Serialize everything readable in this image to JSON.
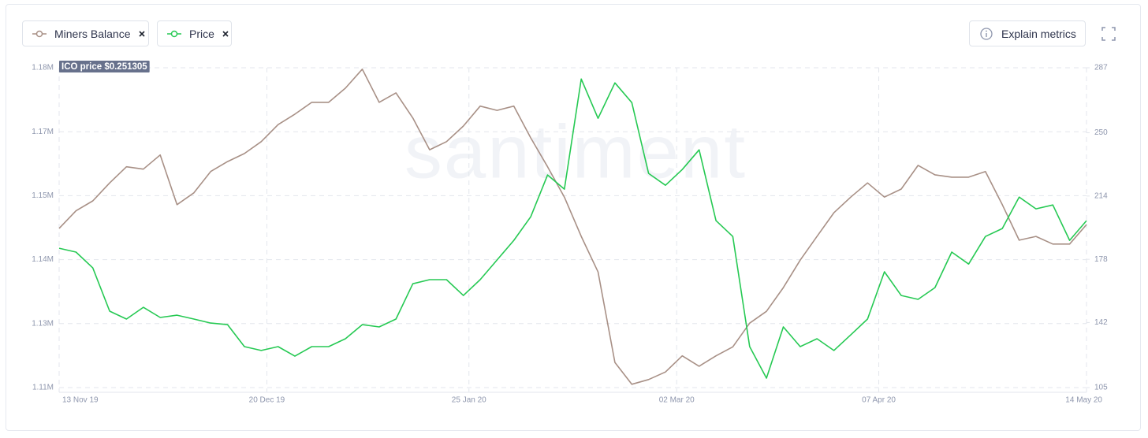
{
  "toolbar": {
    "explain_button": "Explain metrics"
  },
  "chart_data": {
    "type": "line",
    "annotation": "ICO price $0.251305",
    "watermark": "santiment",
    "grid": true,
    "x": [
      "2019-11-13",
      "2019-11-16",
      "2019-11-19",
      "2019-11-22",
      "2019-11-25",
      "2019-11-28",
      "2019-12-01",
      "2019-12-04",
      "2019-12-07",
      "2019-12-10",
      "2019-12-13",
      "2019-12-16",
      "2019-12-19",
      "2019-12-22",
      "2019-12-25",
      "2019-12-28",
      "2019-12-31",
      "2020-01-03",
      "2020-01-06",
      "2020-01-09",
      "2020-01-12",
      "2020-01-15",
      "2020-01-18",
      "2020-01-21",
      "2020-01-24",
      "2020-01-27",
      "2020-01-30",
      "2020-02-02",
      "2020-02-05",
      "2020-02-08",
      "2020-02-11",
      "2020-02-14",
      "2020-02-17",
      "2020-02-20",
      "2020-02-23",
      "2020-02-26",
      "2020-02-29",
      "2020-03-03",
      "2020-03-06",
      "2020-03-09",
      "2020-03-12",
      "2020-03-15",
      "2020-03-18",
      "2020-03-21",
      "2020-03-24",
      "2020-03-27",
      "2020-03-30",
      "2020-04-02",
      "2020-04-05",
      "2020-04-08",
      "2020-04-11",
      "2020-04-14",
      "2020-04-17",
      "2020-04-20",
      "2020-04-23",
      "2020-04-26",
      "2020-04-29",
      "2020-05-02",
      "2020-05-05",
      "2020-05-08",
      "2020-05-11",
      "2020-05-14"
    ],
    "xlim": [
      "2019-11-13",
      "2020-05-14"
    ],
    "xticks": [
      {
        "value": "2019-11-13",
        "label": "13 Nov 19"
      },
      {
        "value": "2019-12-20",
        "label": "20 Dec 19"
      },
      {
        "value": "2020-01-25",
        "label": "25 Jan 20"
      },
      {
        "value": "2020-03-02",
        "label": "02 Mar 20"
      },
      {
        "value": "2020-04-07",
        "label": "07 Apr 20"
      },
      {
        "value": "2020-05-14",
        "label": "14 May 20"
      }
    ],
    "ylim": [
      1111500,
      1179000
    ],
    "yticks": [
      {
        "value": 1111500,
        "label": "1.11M"
      },
      {
        "value": 1125000,
        "label": "1.13M"
      },
      {
        "value": 1138500,
        "label": "1.14M"
      },
      {
        "value": 1152000,
        "label": "1.15M"
      },
      {
        "value": 1165500,
        "label": "1.17M"
      },
      {
        "value": 1179000,
        "label": "1.18M"
      }
    ],
    "y2lim": [
      105,
      287
    ],
    "y2ticks": [
      105,
      142,
      178,
      214,
      250,
      287
    ],
    "series": [
      {
        "name": "Miners Balance",
        "color": "#a89086",
        "axis": "y",
        "values": [
          1145100,
          1148800,
          1150900,
          1154700,
          1158100,
          1157600,
          1160600,
          1150100,
          1152600,
          1157100,
          1159200,
          1160900,
          1163400,
          1167000,
          1169200,
          1171700,
          1171700,
          1174700,
          1178700,
          1171700,
          1173700,
          1168400,
          1161700,
          1163400,
          1166700,
          1170900,
          1170000,
          1170900,
          1164200,
          1158100,
          1151700,
          1143400,
          1135900,
          1116800,
          1112200,
          1113200,
          1114800,
          1118200,
          1116000,
          1118200,
          1120100,
          1125100,
          1127600,
          1132600,
          1138400,
          1143400,
          1148400,
          1151700,
          1154700,
          1151700,
          1153400,
          1158400,
          1156400,
          1155900,
          1155900,
          1157100,
          1150100,
          1142600,
          1143400,
          1141800,
          1141800,
          1145900
        ]
      },
      {
        "name": "Price",
        "color": "#26c953",
        "axis": "y2",
        "values": [
          184.3,
          182.1,
          173.1,
          148.5,
          144.0,
          150.7,
          144.9,
          146.2,
          144.0,
          141.7,
          140.8,
          128.3,
          126.1,
          128.3,
          122.9,
          128.3,
          128.3,
          132.8,
          140.8,
          139.5,
          144.0,
          164.1,
          166.4,
          166.4,
          157.4,
          166.4,
          177.6,
          188.8,
          202.2,
          226.0,
          217.9,
          280.6,
          258.2,
          278.4,
          267.2,
          226.9,
          220.1,
          229.1,
          240.3,
          200.0,
          191.0,
          128.3,
          110.4,
          139.5,
          128.3,
          132.8,
          126.1,
          135.0,
          144.0,
          170.9,
          157.4,
          155.2,
          161.9,
          182.1,
          175.3,
          191.0,
          195.5,
          213.4,
          206.7,
          208.9,
          188.8,
          200.0
        ]
      }
    ]
  }
}
